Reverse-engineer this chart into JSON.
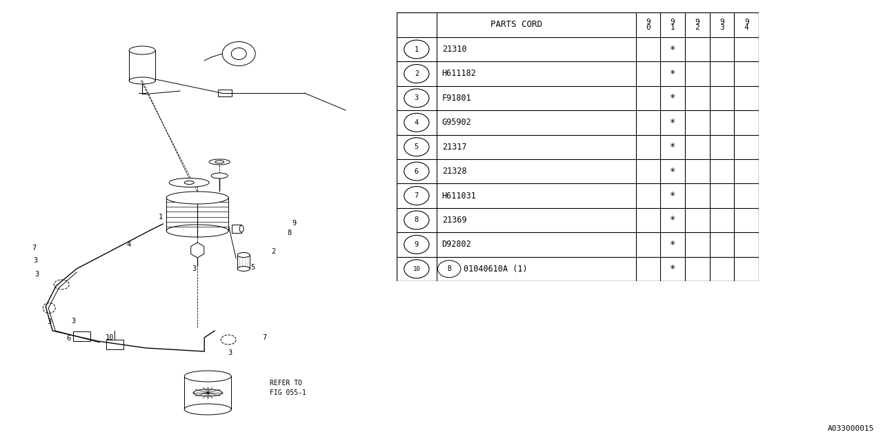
{
  "table_title": "PARTS CORD",
  "col_headers": [
    "9\n0",
    "9\n1",
    "9\n2",
    "9\n3",
    "9\n4"
  ],
  "rows": [
    {
      "num": "1",
      "code": "21310",
      "marks": [
        false,
        true,
        false,
        false,
        false
      ]
    },
    {
      "num": "2",
      "code": "H611182",
      "marks": [
        false,
        true,
        false,
        false,
        false
      ]
    },
    {
      "num": "3",
      "code": "F91801",
      "marks": [
        false,
        true,
        false,
        false,
        false
      ]
    },
    {
      "num": "4",
      "code": "G95902",
      "marks": [
        false,
        true,
        false,
        false,
        false
      ]
    },
    {
      "num": "5",
      "code": "21317",
      "marks": [
        false,
        true,
        false,
        false,
        false
      ]
    },
    {
      "num": "6",
      "code": "21328",
      "marks": [
        false,
        true,
        false,
        false,
        false
      ]
    },
    {
      "num": "7",
      "code": "H611031",
      "marks": [
        false,
        true,
        false,
        false,
        false
      ]
    },
    {
      "num": "8",
      "code": "21369",
      "marks": [
        false,
        true,
        false,
        false,
        false
      ]
    },
    {
      "num": "9",
      "code": "D92802",
      "marks": [
        false,
        true,
        false,
        false,
        false
      ]
    },
    {
      "num": "10",
      "code": "B01040610A (1)",
      "marks": [
        false,
        true,
        false,
        false,
        false
      ]
    }
  ],
  "figure_code": "A033000015",
  "bg_color": "#ffffff",
  "line_color": "#000000",
  "font_color": "#000000"
}
